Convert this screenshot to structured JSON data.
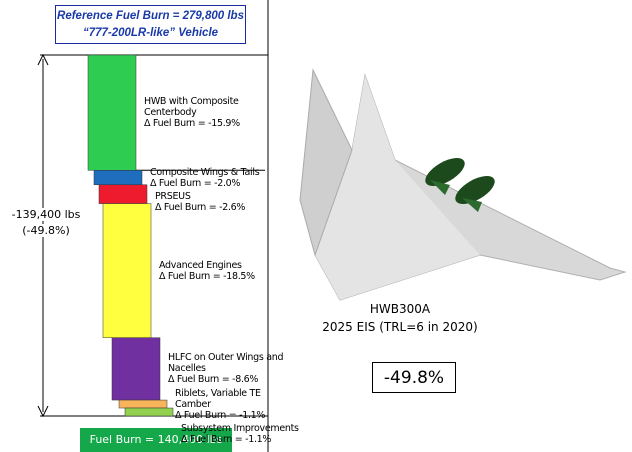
{
  "chart_data": {
    "type": "waterfall",
    "title": "Reference Fuel Burn = 279,800 lbs",
    "subtitle": "“777-200LR-like” Vehicle",
    "categories": [
      "HWB with Composite Centerbody",
      "Composite Wings & Tails",
      "PRSEUS",
      "Advanced Engines",
      "HLFC on Outer Wings and Nacelles",
      "Riblets, Variable TE Camber",
      "Subsystem Improvements"
    ],
    "values": [
      -15.9,
      -2.0,
      -2.6,
      -18.5,
      -8.6,
      -1.1,
      -1.1
    ],
    "value_labels": [
      "Δ Fuel Burn = -15.9%",
      "Δ Fuel Burn = -2.0%",
      "Δ Fuel Burn = -2.6%",
      "Δ Fuel Burn = -18.5%",
      "Δ Fuel Burn = -8.6%",
      "Δ Fuel Burn = -1.1%",
      "Δ Fuel Burn = -1.1%"
    ],
    "colors": [
      "#2fcc52",
      "#1f6dbd",
      "#ee1b2e",
      "#ffff40",
      "#7030a0",
      "#f7b45a",
      "#92d050"
    ],
    "ylim": [
      -49.8,
      0
    ],
    "total_label": "-139,400 lbs",
    "total_percent_label": "(-49.8%)",
    "final_label": "Fuel Burn = 140,400 lbs",
    "vehicle_name": "HWB300A",
    "vehicle_note": "2025 EIS (TRL=6 in 2020)",
    "result": "-49.8%"
  }
}
